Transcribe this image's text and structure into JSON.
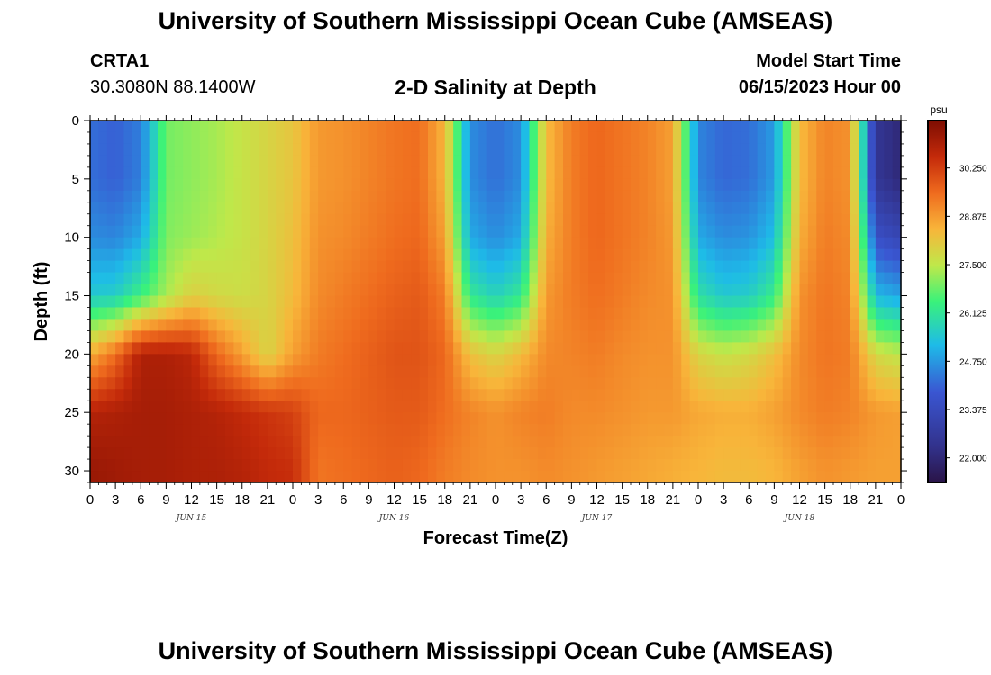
{
  "header": {
    "title": "University of Southern Mississippi Ocean Cube (AMSEAS)",
    "station_id": "CRTA1",
    "station_coords": "30.3080N  88.1400W",
    "chart_title": "2-D Salinity at Depth",
    "model_start_label": "Model Start Time",
    "model_start_value": "06/15/2023 Hour 00"
  },
  "footer": {
    "title": "University of Southern Mississippi Ocean Cube (AMSEAS)"
  },
  "chart_data": {
    "type": "heatmap",
    "title": "2-D Salinity at Depth",
    "xlabel": "Forecast Time(Z)",
    "ylabel": "Depth (ft)",
    "x_range_hours": [
      0,
      96
    ],
    "x_tick_labels": [
      "0",
      "3",
      "6",
      "9",
      "12",
      "15",
      "18",
      "21",
      "0",
      "3",
      "6",
      "9",
      "12",
      "15",
      "18",
      "21",
      "0",
      "3",
      "6",
      "9",
      "12",
      "15",
      "18",
      "21",
      "0",
      "3",
      "6",
      "9",
      "12",
      "15",
      "18",
      "21",
      "0"
    ],
    "day_labels": [
      {
        "label": "JUN 15",
        "hour": 12
      },
      {
        "label": "JUN 16",
        "hour": 36
      },
      {
        "label": "JUN 17",
        "hour": 60
      },
      {
        "label": "JUN 18",
        "hour": 84
      }
    ],
    "y_range_ft": [
      0,
      31
    ],
    "y_ticks": [
      "0",
      "5",
      "10",
      "15",
      "20",
      "25",
      "30"
    ],
    "y_tick_values": [
      0,
      5,
      10,
      15,
      20,
      25,
      30
    ],
    "colorbar": {
      "unit": "psu",
      "range": [
        21.3,
        31.6
      ],
      "tick_labels": [
        "30.250",
        "28.875",
        "27.500",
        "26.125",
        "24.750",
        "23.375",
        "22.000"
      ],
      "tick_values": [
        30.25,
        28.875,
        27.5,
        26.125,
        24.75,
        23.375,
        22.0
      ]
    },
    "salinity_samples_psu": {
      "depths_ft": [
        0,
        5,
        10,
        15,
        20,
        25,
        30
      ],
      "times_h": [
        0,
        3,
        6,
        9,
        12,
        15,
        18,
        21,
        24,
        27,
        30,
        33,
        36,
        39,
        42,
        45,
        48,
        51,
        54,
        57,
        60,
        63,
        66,
        69,
        72,
        75,
        78,
        81,
        84,
        87,
        90,
        93,
        96
      ],
      "rows": [
        [
          24.2,
          24.0,
          24.4,
          26.9,
          27.1,
          27.3,
          27.6,
          27.9,
          28.2,
          28.9,
          29.0,
          29.2,
          29.4,
          29.5,
          28.5,
          24.6,
          24.2,
          24.6,
          28.4,
          29.3,
          29.6,
          29.4,
          29.2,
          28.8,
          24.5,
          24.1,
          24.2,
          24.8,
          28.4,
          29.2,
          29.0,
          22.5,
          22.0
        ],
        [
          24.2,
          24.0,
          24.4,
          26.9,
          27.1,
          27.3,
          27.6,
          27.9,
          28.2,
          28.9,
          29.0,
          29.2,
          29.4,
          29.5,
          28.5,
          24.6,
          24.2,
          24.6,
          28.4,
          29.3,
          29.6,
          29.4,
          29.2,
          28.8,
          24.5,
          24.1,
          24.2,
          24.8,
          28.4,
          29.2,
          29.0,
          22.5,
          22.0
        ],
        [
          24.6,
          24.5,
          25.0,
          27.0,
          27.2,
          27.4,
          27.6,
          27.9,
          28.3,
          29.0,
          29.1,
          29.3,
          29.5,
          29.6,
          28.8,
          25.0,
          24.6,
          25.0,
          28.6,
          29.3,
          29.6,
          29.4,
          29.2,
          28.9,
          25.0,
          24.6,
          24.7,
          25.3,
          28.6,
          29.3,
          29.1,
          23.6,
          23.2
        ],
        [
          25.5,
          25.6,
          26.4,
          27.3,
          28.0,
          27.8,
          27.7,
          27.9,
          28.4,
          29.1,
          29.3,
          29.5,
          29.7,
          29.8,
          29.3,
          26.2,
          25.7,
          26.2,
          28.9,
          29.3,
          29.5,
          29.3,
          29.1,
          29.0,
          26.0,
          25.5,
          25.6,
          26.3,
          29.0,
          29.4,
          29.2,
          25.2,
          24.9
        ],
        [
          28.6,
          29.5,
          30.9,
          30.9,
          30.7,
          29.6,
          28.8,
          27.9,
          28.8,
          29.3,
          29.5,
          29.7,
          29.9,
          29.9,
          29.6,
          28.3,
          27.9,
          28.4,
          29.1,
          29.2,
          29.3,
          29.1,
          29.0,
          29.0,
          27.9,
          27.6,
          27.8,
          28.3,
          29.1,
          29.4,
          29.3,
          27.8,
          27.5
        ],
        [
          30.8,
          30.9,
          31.0,
          31.0,
          30.9,
          30.8,
          30.6,
          30.4,
          30.2,
          29.6,
          29.6,
          29.7,
          29.8,
          29.8,
          29.5,
          29.2,
          29.0,
          29.2,
          29.3,
          29.1,
          29.1,
          29.0,
          28.9,
          28.9,
          28.7,
          28.6,
          28.6,
          28.8,
          29.1,
          29.3,
          29.2,
          28.9,
          28.8
        ],
        [
          31.2,
          31.1,
          31.0,
          31.0,
          30.9,
          30.9,
          30.8,
          30.6,
          30.5,
          29.4,
          29.5,
          29.6,
          29.7,
          29.6,
          29.3,
          29.1,
          29.0,
          29.0,
          29.1,
          29.0,
          28.9,
          28.8,
          28.7,
          28.6,
          28.5,
          28.4,
          28.4,
          28.5,
          28.8,
          29.0,
          28.9,
          28.8,
          28.8
        ]
      ]
    },
    "grid": false,
    "legend": "right (vertical colorbar)"
  }
}
